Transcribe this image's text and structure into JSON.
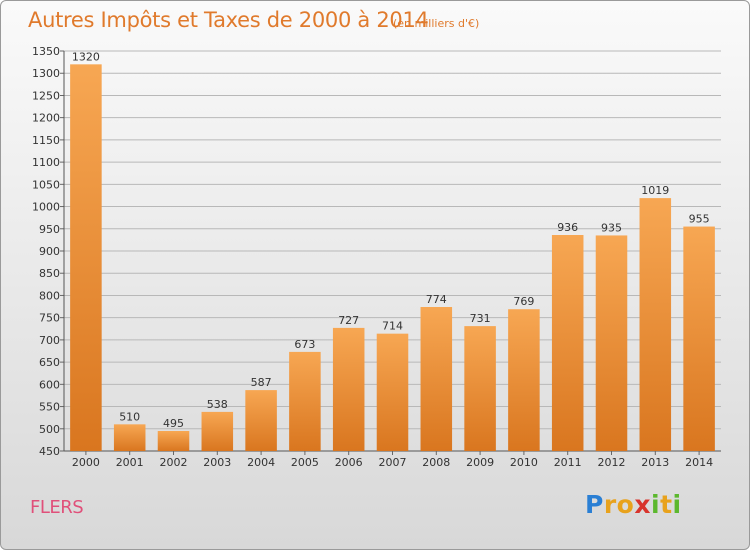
{
  "title": "Autres Impôts et Taxes de 2000 à 2014",
  "subtitle": "(en milliers d'€)",
  "location": "FLERS",
  "logo": {
    "text": "Proxiti",
    "letters": [
      {
        "ch": "P",
        "color": "#2a7fd4"
      },
      {
        "ch": "r",
        "color": "#e8a21c"
      },
      {
        "ch": "o",
        "color": "#e8a21c"
      },
      {
        "ch": "x",
        "color": "#d8342c"
      },
      {
        "ch": "i",
        "color": "#5cb82e"
      },
      {
        "ch": "t",
        "color": "#e8a21c"
      },
      {
        "ch": "i",
        "color": "#5cb82e"
      }
    ]
  },
  "colors": {
    "bar_top": "#f7a753",
    "bar_bottom": "#d9761f",
    "title": "#e07a2c",
    "location": "#e0507a",
    "grid": "#b8b8b8",
    "text": "#333333"
  },
  "chart_data": {
    "type": "bar",
    "title": "Autres Impôts et Taxes de 2000 à 2014",
    "subtitle": "(en milliers d'€)",
    "categories": [
      "2000",
      "2001",
      "2002",
      "2003",
      "2004",
      "2005",
      "2006",
      "2007",
      "2008",
      "2009",
      "2010",
      "2011",
      "2012",
      "2013",
      "2014"
    ],
    "values": [
      1320,
      510,
      495,
      538,
      587,
      673,
      727,
      714,
      774,
      731,
      769,
      936,
      935,
      1019,
      955
    ],
    "data_labels": [
      "1320",
      "510",
      "495",
      "538",
      "587",
      "673",
      "727",
      "714",
      "774",
      "731",
      "769",
      "936",
      "935",
      "1019",
      "955"
    ],
    "ylim": [
      450,
      1350
    ],
    "yticks": [
      450,
      500,
      550,
      600,
      650,
      700,
      750,
      800,
      850,
      900,
      950,
      1000,
      1050,
      1100,
      1150,
      1200,
      1250,
      1300,
      1350
    ],
    "grid": true
  }
}
